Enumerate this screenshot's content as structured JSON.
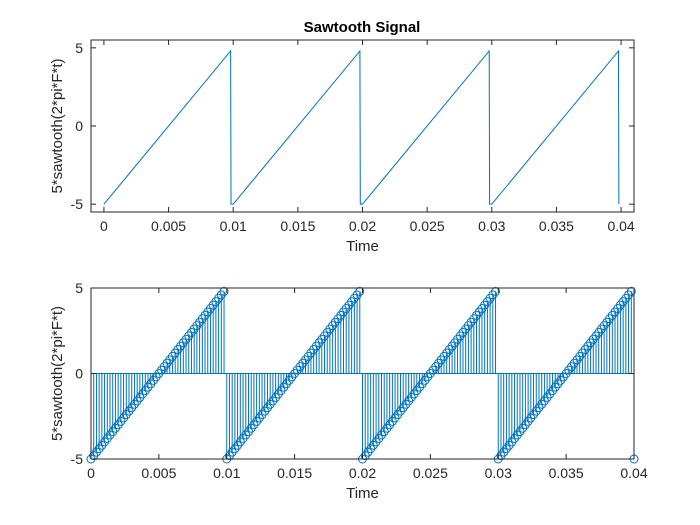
{
  "chart_data": [
    {
      "type": "line",
      "title": "Sawtooth Signal",
      "xlabel": "Time",
      "ylabel": "5*sawtooth(2*pi*F*t)",
      "xlim": [
        -0.001,
        0.041
      ],
      "ylim": [
        -5.5,
        5.5
      ],
      "xticks": [
        0,
        0.005,
        0.01,
        0.015,
        0.02,
        0.025,
        0.03,
        0.035,
        0.04
      ],
      "xtick_labels": [
        "0",
        "0.005",
        "0.01",
        "0.015",
        "0.02",
        "0.025",
        "0.03",
        "0.035",
        "0.04"
      ],
      "yticks": [
        -5,
        0,
        5
      ],
      "ytick_labels": [
        "-5",
        "0",
        "5"
      ],
      "grid": false,
      "color": "#0072BD",
      "signal": {
        "amplitude": 5,
        "period": 0.01,
        "t_start": 0,
        "t_end": 0.04,
        "samples_per_period": 50
      }
    },
    {
      "type": "stem",
      "title": "",
      "xlabel": "Time",
      "ylabel": "5*sawtooth(2*pi*F*t)",
      "xlim": [
        0,
        0.04
      ],
      "ylim": [
        -5,
        5
      ],
      "xticks": [
        0,
        0.005,
        0.01,
        0.015,
        0.02,
        0.025,
        0.03,
        0.035,
        0.04
      ],
      "xtick_labels": [
        "0",
        "0.005",
        "0.01",
        "0.015",
        "0.02",
        "0.025",
        "0.03",
        "0.035",
        "0.04"
      ],
      "yticks": [
        -5,
        0,
        5
      ],
      "ytick_labels": [
        "-5",
        "0",
        "5"
      ],
      "grid": false,
      "color": "#0072BD",
      "marker": "circle",
      "signal": {
        "amplitude": 5,
        "period": 0.01,
        "t_start": 0,
        "t_end": 0.04,
        "samples_per_period": 50
      }
    }
  ]
}
